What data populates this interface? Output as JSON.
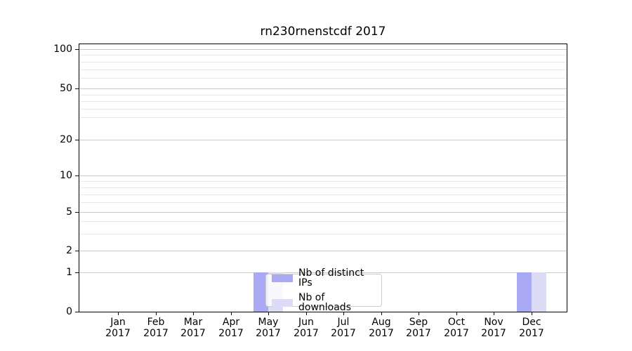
{
  "title": "rn230rnenstcdf 2017",
  "colors": {
    "distinct_ips": "#a9a9f4",
    "downloads": "#dcdcf7",
    "grid_major": "#c9c9c9",
    "grid_minor": "#e8e8e8",
    "spine": "#000000"
  },
  "legend": {
    "items": [
      {
        "label": "Nb of distinct IPs",
        "color": "#a9a9f4"
      },
      {
        "label": "Nb of downloads",
        "color": "#dcdcf7"
      }
    ]
  },
  "axes": {
    "y_major_ticks": [
      100,
      50,
      20,
      10,
      5,
      2,
      1,
      0
    ],
    "y_minor_ticks": [
      90,
      80,
      70,
      60,
      45,
      40,
      35,
      30,
      9,
      8,
      7,
      6,
      4,
      3
    ],
    "x_ticks": [
      {
        "month": "Jan",
        "year": "2017"
      },
      {
        "month": "Feb",
        "year": "2017"
      },
      {
        "month": "Mar",
        "year": "2017"
      },
      {
        "month": "Apr",
        "year": "2017"
      },
      {
        "month": "May",
        "year": "2017"
      },
      {
        "month": "Jun",
        "year": "2017"
      },
      {
        "month": "Jul",
        "year": "2017"
      },
      {
        "month": "Aug",
        "year": "2017"
      },
      {
        "month": "Sep",
        "year": "2017"
      },
      {
        "month": "Oct",
        "year": "2017"
      },
      {
        "month": "Nov",
        "year": "2017"
      },
      {
        "month": "Dec",
        "year": "2017"
      }
    ]
  },
  "chart_data": {
    "type": "bar",
    "title": "rn230rnenstcdf 2017",
    "categories": [
      "Jan 2017",
      "Feb 2017",
      "Mar 2017",
      "Apr 2017",
      "May 2017",
      "Jun 2017",
      "Jul 2017",
      "Aug 2017",
      "Sep 2017",
      "Oct 2017",
      "Nov 2017",
      "Dec 2017"
    ],
    "series": [
      {
        "name": "Nb of distinct IPs",
        "color": "#a9a9f4",
        "values": [
          0,
          0,
          0,
          0,
          1,
          0,
          0,
          0,
          0,
          0,
          0,
          1
        ]
      },
      {
        "name": "Nb of downloads",
        "color": "#dcdcf7",
        "values": [
          0,
          0,
          0,
          0,
          1,
          0,
          0,
          0,
          0,
          0,
          0,
          1
        ]
      }
    ],
    "xlabel": "",
    "ylabel": "",
    "ylim": [
      0,
      100
    ],
    "yticks": [
      0,
      1,
      2,
      5,
      10,
      20,
      50,
      100
    ],
    "yscale": "log-like above 1, linear segment 0 to 1",
    "grid": "on (horizontal major + minor)",
    "legend_position": "inside plot, lower center-left, semi-transparent white box"
  }
}
